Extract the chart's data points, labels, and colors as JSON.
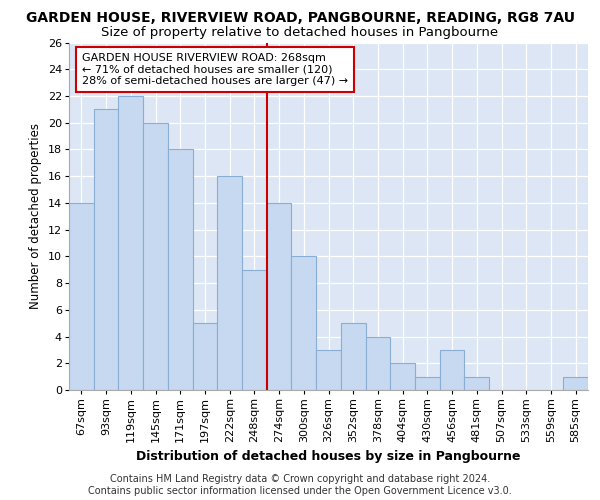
{
  "title_line1": "GARDEN HOUSE, RIVERVIEW ROAD, PANGBOURNE, READING, RG8 7AU",
  "title_line2": "Size of property relative to detached houses in Pangbourne",
  "xlabel": "Distribution of detached houses by size in Pangbourne",
  "ylabel": "Number of detached properties",
  "categories": [
    "67sqm",
    "93sqm",
    "119sqm",
    "145sqm",
    "171sqm",
    "197sqm",
    "222sqm",
    "248sqm",
    "274sqm",
    "300sqm",
    "326sqm",
    "352sqm",
    "378sqm",
    "404sqm",
    "430sqm",
    "456sqm",
    "481sqm",
    "507sqm",
    "533sqm",
    "559sqm",
    "585sqm"
  ],
  "values": [
    14,
    21,
    22,
    20,
    18,
    5,
    16,
    9,
    14,
    10,
    3,
    5,
    4,
    2,
    1,
    3,
    1,
    0,
    0,
    0,
    1
  ],
  "bar_color": "#c6d9f0",
  "bar_edge_color": "#8aadd4",
  "vline_color": "#cc0000",
  "vline_x": 8,
  "annotation_text": "GARDEN HOUSE RIVERVIEW ROAD: 268sqm\n← 71% of detached houses are smaller (120)\n28% of semi-detached houses are larger (47) →",
  "annotation_box_facecolor": "#ffffff",
  "annotation_box_edgecolor": "#cc0000",
  "ylim": [
    0,
    26
  ],
  "yticks": [
    0,
    2,
    4,
    6,
    8,
    10,
    12,
    14,
    16,
    18,
    20,
    22,
    24,
    26
  ],
  "background_color": "#dce6f5",
  "grid_color": "#ffffff",
  "footer_text": "Contains HM Land Registry data © Crown copyright and database right 2024.\nContains public sector information licensed under the Open Government Licence v3.0.",
  "title_fontsize": 10,
  "subtitle_fontsize": 9.5,
  "axis_label_fontsize": 9,
  "tick_fontsize": 8,
  "annotation_fontsize": 8,
  "footer_fontsize": 7,
  "ylabel_fontsize": 8.5
}
